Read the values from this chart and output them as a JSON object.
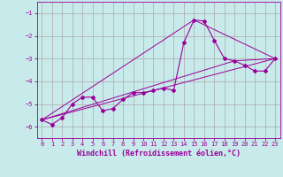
{
  "xlabel": "Windchill (Refroidissement éolien,°C)",
  "background_color": "#c8eaea",
  "grid_color": "#aaaaaa",
  "line_color": "#990099",
  "xlim": [
    -0.5,
    23.5
  ],
  "ylim": [
    -6.5,
    -0.5
  ],
  "xticks": [
    0,
    1,
    2,
    3,
    4,
    5,
    6,
    7,
    8,
    9,
    10,
    11,
    12,
    13,
    14,
    15,
    16,
    17,
    18,
    19,
    20,
    21,
    22,
    23
  ],
  "yticks": [
    -6,
    -5,
    -4,
    -3,
    -2,
    -1
  ],
  "series_x": [
    0,
    1,
    2,
    3,
    4,
    5,
    6,
    7,
    8,
    9,
    10,
    11,
    12,
    13,
    14,
    15,
    16,
    17,
    18,
    19,
    20,
    21,
    22,
    23
  ],
  "series_y": [
    -5.7,
    -5.9,
    -5.6,
    -5.0,
    -4.7,
    -4.7,
    -5.3,
    -5.2,
    -4.8,
    -4.5,
    -4.5,
    -4.4,
    -4.3,
    -4.4,
    -2.3,
    -1.3,
    -1.35,
    -2.2,
    -3.0,
    -3.1,
    -3.3,
    -3.55,
    -3.55,
    -3.0
  ],
  "trend_lines": [
    {
      "x": [
        0,
        23
      ],
      "y": [
        -5.7,
        -3.0
      ]
    },
    {
      "x": [
        0,
        15
      ],
      "y": [
        -5.7,
        -1.3
      ]
    },
    {
      "x": [
        15,
        23
      ],
      "y": [
        -1.3,
        -3.0
      ]
    },
    {
      "x": [
        0,
        19
      ],
      "y": [
        -5.7,
        -3.1
      ]
    },
    {
      "x": [
        19,
        23
      ],
      "y": [
        -3.1,
        -3.0
      ]
    }
  ],
  "tick_fontsize": 5,
  "xlabel_fontsize": 6,
  "xlabel_fontweight": "bold"
}
